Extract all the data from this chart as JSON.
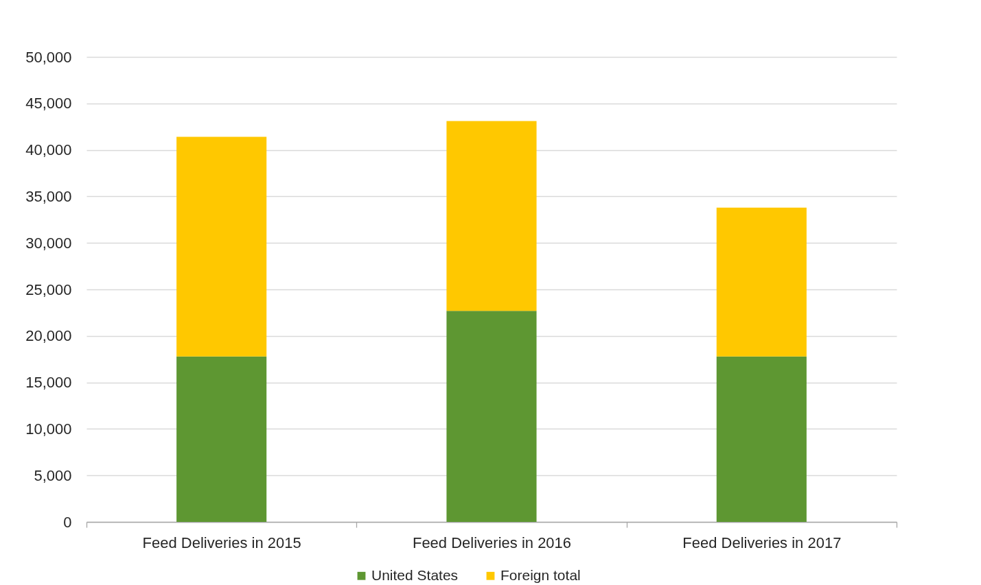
{
  "chart_data": {
    "type": "bar",
    "categories": [
      "Feed Deliveries in 2015",
      "Feed Deliveries in 2016",
      "Feed Deliveries in 2017"
    ],
    "series": [
      {
        "name": "United States",
        "color": "#5e9732",
        "values": [
          17800,
          22700,
          17800
        ]
      },
      {
        "name": "Foreign total",
        "color": "#ffc800",
        "values": [
          23600,
          20400,
          16000
        ]
      }
    ],
    "stacked": true,
    "ylim": [
      0,
      50000
    ],
    "yticks": [
      0,
      {
        "value": 5000,
        "label": "5,000"
      },
      {
        "value": 10000,
        "label": "10,000"
      },
      {
        "value": 15000,
        "label": "15,000"
      },
      {
        "value": 20000,
        "label": "20,000"
      },
      {
        "value": 25000,
        "label": "25,000"
      },
      {
        "value": 30000,
        "label": "30,000"
      },
      {
        "value": 35000,
        "label": "35,000"
      },
      {
        "value": 40000,
        "label": "40,000"
      },
      {
        "value": 45000,
        "label": "45,000"
      },
      {
        "value": 50000,
        "label": "50,000"
      }
    ],
    "grid": "y",
    "legend": "bottom"
  }
}
